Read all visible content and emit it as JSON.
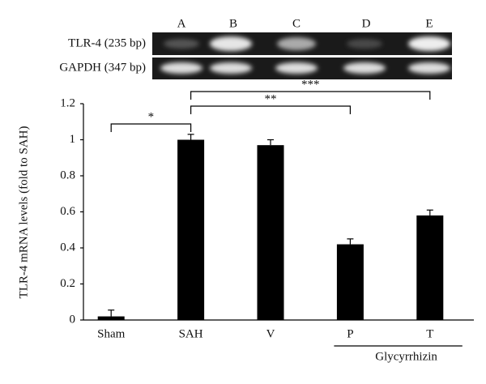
{
  "chart_data": {
    "type": "bar",
    "y_label": "TLR-4 mRNA levels (fold to SAH)",
    "categories": [
      "Sham",
      "SAH",
      "V",
      "P",
      "T"
    ],
    "values": [
      0.02,
      1.0,
      0.97,
      0.42,
      0.58
    ],
    "errors": [
      0.035,
      0.03,
      0.03,
      0.03,
      0.03
    ],
    "color": "#000000",
    "ylim": [
      0,
      1.2
    ],
    "yticks": [
      0,
      0.2,
      0.4,
      0.6,
      0.8,
      1,
      1.2
    ],
    "group_label": {
      "text": "Glycyrrhizin",
      "categories": [
        "P",
        "T"
      ]
    },
    "significance": [
      {
        "label": "*",
        "between": [
          "Sham",
          "SAH"
        ]
      },
      {
        "label": "**",
        "between": [
          "SAH",
          "P"
        ]
      },
      {
        "label": "***",
        "between": [
          "SAH",
          "T"
        ]
      }
    ],
    "gel": {
      "lanes": [
        "A",
        "B",
        "C",
        "D",
        "E"
      ],
      "rows": [
        "TLR-4 (235 bp)",
        "GAPDH (347 bp)"
      ]
    }
  }
}
